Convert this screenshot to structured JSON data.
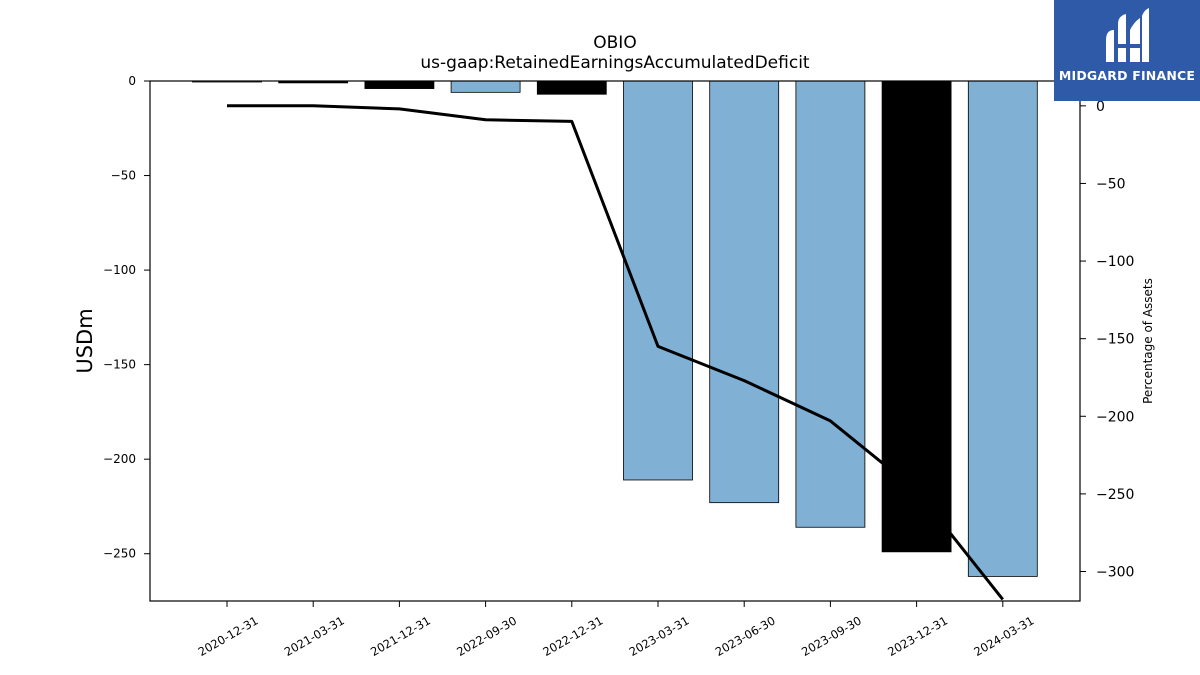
{
  "chart_data": {
    "type": "bar",
    "title": "OBIO",
    "subtitle": "us-gaap:RetainedEarningsAccumulatedDeficit",
    "ylabel": "USDm",
    "y2label": "Percentage of Assets",
    "categories": [
      "2020-12-31",
      "2021-03-31",
      "2021-12-31",
      "2022-09-30",
      "2022-12-31",
      "2023-03-31",
      "2023-06-30",
      "2023-09-30",
      "2023-12-31",
      "2024-03-31"
    ],
    "series": [
      {
        "values": [
          0,
          -1,
          -4,
          -6,
          -7,
          -211,
          -223,
          -236,
          -249,
          -262
        ],
        "bar_colors": [
          "#80b0d4",
          "#000000",
          "#000000",
          "#80b0d4",
          "#000000",
          "#80b0d4",
          "#80b0d4",
          "#80b0d4",
          "#000000",
          "#80b0d4"
        ]
      },
      {
        "axis": "right",
        "type": "line",
        "color": "#000000",
        "values": [
          0,
          0,
          -2,
          -9,
          -10,
          -155,
          -177,
          -203,
          -248,
          -318
        ]
      }
    ],
    "ylim": [
      -275,
      0
    ],
    "y2lim": [
      -319,
      16
    ],
    "yticks": [
      0,
      -50,
      -100,
      -150,
      -200,
      -250
    ],
    "y2ticks": [
      0,
      -50,
      -100,
      -150,
      -200,
      -250,
      -300
    ],
    "grid": false
  },
  "logo": {
    "text": "MIDGARD FINANCE",
    "color": "#2f5aa8"
  }
}
